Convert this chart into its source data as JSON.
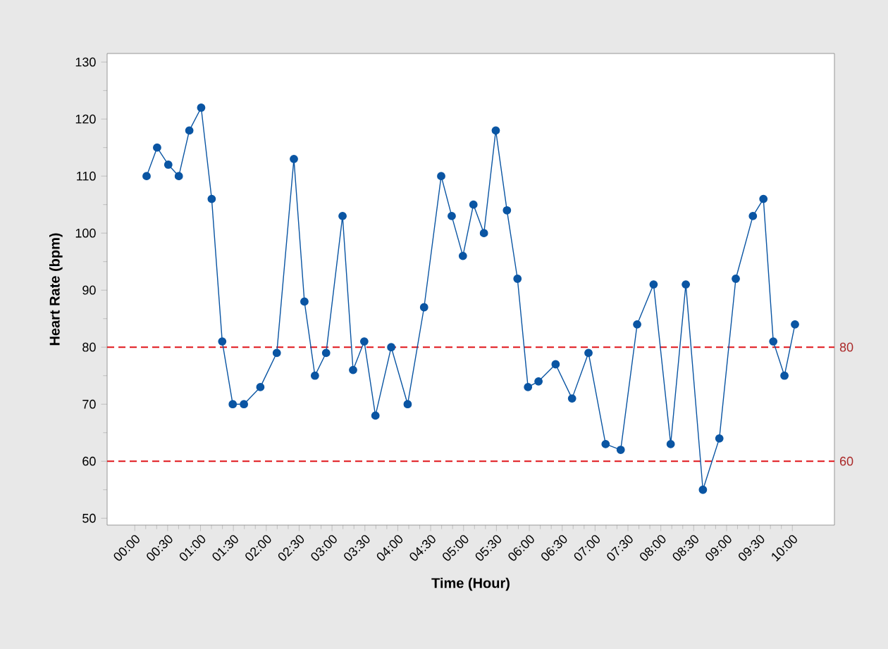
{
  "chart_data": {
    "type": "line",
    "xlabel": "Time (Hour)",
    "ylabel": "Heart Rate (bpm)",
    "x": [
      0.18,
      0.34,
      0.51,
      0.67,
      0.83,
      1.01,
      1.17,
      1.33,
      1.49,
      1.66,
      1.91,
      2.16,
      2.42,
      2.58,
      2.74,
      2.91,
      3.16,
      3.32,
      3.49,
      3.66,
      3.9,
      4.15,
      4.4,
      4.66,
      4.82,
      4.99,
      5.15,
      5.31,
      5.49,
      5.66,
      5.82,
      5.98,
      6.14,
      6.4,
      6.65,
      6.9,
      7.16,
      7.39,
      7.64,
      7.89,
      8.15,
      8.38,
      8.64,
      8.89,
      9.14,
      9.4,
      9.56,
      9.71,
      9.88,
      10.04
    ],
    "values": [
      110,
      115,
      112,
      110,
      118,
      122,
      106,
      81,
      70,
      70,
      73,
      79,
      113,
      88,
      75,
      79,
      103,
      76,
      81,
      68,
      80,
      70,
      87,
      110,
      103,
      96,
      105,
      100,
      118,
      104,
      92,
      73,
      74,
      77,
      71,
      79,
      63,
      62,
      84,
      91,
      63,
      91,
      55,
      64,
      92,
      103,
      106,
      81,
      75,
      84
    ],
    "color": "#0a55a3",
    "marker": "circle",
    "line_style": "solid",
    "xlim": [
      -0.42,
      10.64
    ],
    "xticks": [
      {
        "value": 0,
        "label": "00:00"
      },
      {
        "value": 0.5,
        "label": "00:30"
      },
      {
        "value": 1,
        "label": "01:00"
      },
      {
        "value": 1.5,
        "label": "01:30"
      },
      {
        "value": 2,
        "label": "02:00"
      },
      {
        "value": 2.5,
        "label": "02:30"
      },
      {
        "value": 3,
        "label": "03:00"
      },
      {
        "value": 3.5,
        "label": "03:30"
      },
      {
        "value": 4,
        "label": "04:00"
      },
      {
        "value": 4.5,
        "label": "04:30"
      },
      {
        "value": 5,
        "label": "05:00"
      },
      {
        "value": 5.5,
        "label": "05:30"
      },
      {
        "value": 6,
        "label": "06:00"
      },
      {
        "value": 6.5,
        "label": "06:30"
      },
      {
        "value": 7,
        "label": "07:00"
      },
      {
        "value": 7.5,
        "label": "07:30"
      },
      {
        "value": 8,
        "label": "08:00"
      },
      {
        "value": 8.5,
        "label": "08:30"
      },
      {
        "value": 9,
        "label": "09:00"
      },
      {
        "value": 9.5,
        "label": "09:30"
      },
      {
        "value": 10,
        "label": "10:00"
      }
    ],
    "ylim": [
      48.8,
      131.5
    ],
    "yticks": [
      50,
      60,
      70,
      80,
      90,
      100,
      110,
      120,
      130
    ],
    "ref_lines": [
      {
        "axis": "y",
        "value": 80,
        "label": "80",
        "color": "#e0151a",
        "line_style": "dashed"
      },
      {
        "axis": "y",
        "value": 60,
        "label": "60",
        "color": "#e0151a",
        "line_style": "dashed"
      }
    ]
  }
}
